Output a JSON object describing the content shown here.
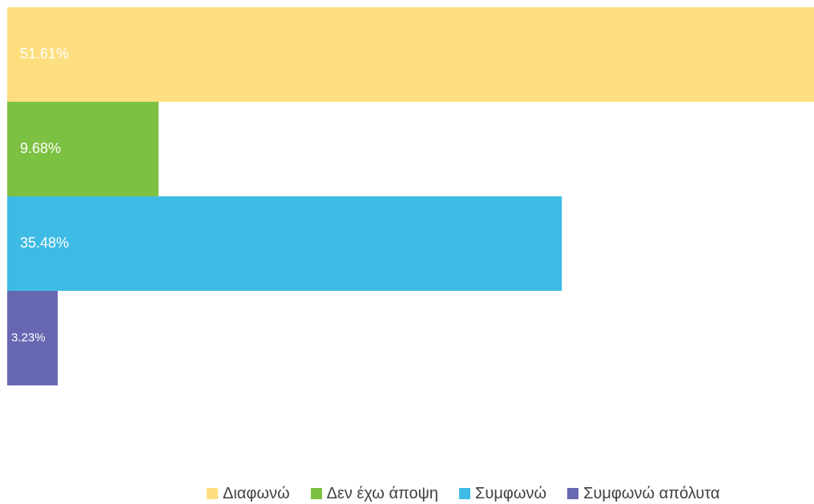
{
  "chart_data": {
    "type": "bar",
    "orientation": "horizontal",
    "categories": [
      "Διαφωνώ",
      "Δεν έχω άποψη",
      "Συμφωνώ",
      "Συμφωνώ απόλυτα"
    ],
    "values": [
      51.61,
      9.68,
      35.48,
      3.23
    ],
    "data_labels": [
      "51.61%",
      "9.68%",
      "35.48%",
      "3.23%"
    ],
    "colors": [
      "#FEDF7F",
      "#7DC142",
      "#3EBBE4",
      "#6767B2"
    ],
    "legend_position": "bottom",
    "grid": false,
    "xlim": [
      0,
      51.61
    ]
  },
  "legend": {
    "items": [
      {
        "label": "Διαφωνώ",
        "color": "#FEDF7F"
      },
      {
        "label": "Δεν έχω άποψη",
        "color": "#7DC142"
      },
      {
        "label": "Συμφωνώ",
        "color": "#3EBBE4"
      },
      {
        "label": "Συμφωνώ απόλυτα",
        "color": "#6767B2"
      }
    ]
  }
}
